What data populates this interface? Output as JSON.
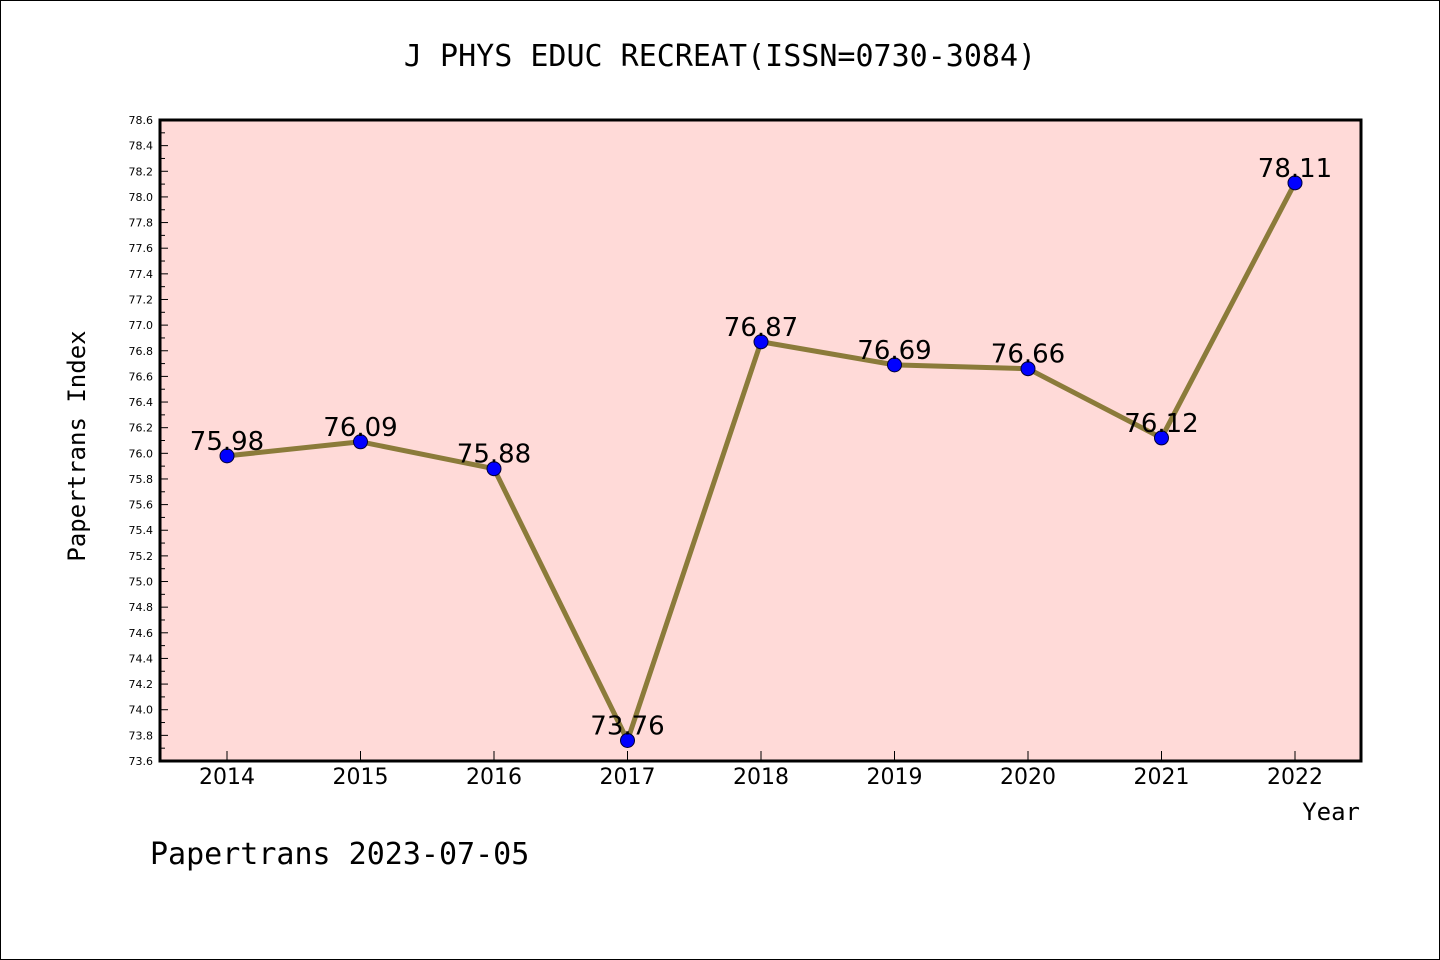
{
  "chart_data": {
    "type": "line",
    "title": "J PHYS EDUC RECREAT(ISSN=0730-3084)",
    "xlabel": "Year",
    "ylabel": "Papertrans Index",
    "x": [
      "2014",
      "2015",
      "2016",
      "2017",
      "2018",
      "2019",
      "2020",
      "2021",
      "2022"
    ],
    "series": [
      {
        "values": [
          75.98,
          76.09,
          75.88,
          73.76,
          76.87,
          76.69,
          76.66,
          76.12,
          78.11
        ]
      }
    ],
    "data_labels": [
      "75.98",
      "76.09",
      "75.88",
      "73.76",
      "76.87",
      "76.69",
      "76.66",
      "76.12",
      "78.11"
    ],
    "ylim": [
      73.6,
      78.6
    ],
    "y_ticks": [
      "73.6",
      "73.8",
      "74.0",
      "74.2",
      "74.4",
      "74.6",
      "74.8",
      "75.0",
      "75.2",
      "75.4",
      "75.6",
      "75.8",
      "76.0",
      "76.2",
      "76.4",
      "76.6",
      "76.8",
      "77.0",
      "77.2",
      "77.4",
      "77.6",
      "77.8",
      "78.0",
      "78.2",
      "78.4",
      "78.6"
    ],
    "grid": false,
    "colors": {
      "plot_background": "#FFDAD8",
      "line": "#8B7B3A",
      "marker": "#0000FF"
    }
  },
  "footer": "Papertrans 2023-07-05"
}
